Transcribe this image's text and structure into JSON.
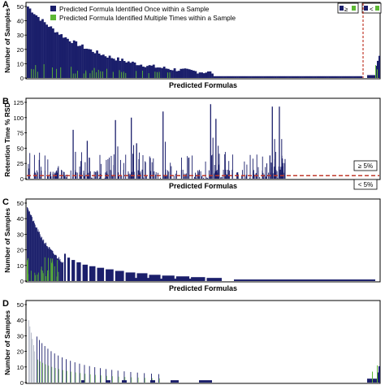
{
  "colors": {
    "navy": "#1b1f6b",
    "green": "#5db834",
    "red_dashed": "#c0392b",
    "axis": "#000000"
  },
  "chart_data": [
    {
      "panel": "A",
      "type": "bar",
      "stacked": true,
      "xlabel": "Predicted Formulas",
      "ylabel": "Number of Samples",
      "ylim": [
        0,
        50
      ],
      "yticks": [
        "0",
        "10",
        "20",
        "30",
        "40",
        "50"
      ],
      "divider_line": "vertical red dashed near right end",
      "legend_position": "top",
      "legend": [
        {
          "label": "Predicted Formula Identified Once within a Sample",
          "color": "navy"
        },
        {
          "label": "Predicted Formula Identified Multiple Times within a Sample",
          "color": "green"
        }
      ],
      "side_legend": [
        {
          "label": "≥",
          "color": "navy"
        },
        {
          "label": "<",
          "color": "navy"
        }
      ],
      "series": [
        {
          "name": "Predicted Formula Identified Once within a Sample",
          "profile": "decreasing",
          "max": 50,
          "tail_max": 15
        },
        {
          "name": "Predicted Formula Identified Multiple Times within a Sample",
          "profile": "sparse_spikes",
          "max": 12,
          "tail_max": 8
        }
      ]
    },
    {
      "panel": "B",
      "type": "bar",
      "xlabel": "Predicted  Formulas",
      "ylabel": "Retention Time % RSD",
      "ylim": [
        0,
        125
      ],
      "yticks": [
        "0",
        "25",
        "50",
        "75",
        "100",
        "125"
      ],
      "threshold_line": {
        "value": 5,
        "style": "red dashed"
      },
      "annotations": [
        "≥ 5%",
        "< 5%"
      ],
      "peaks": [
        {
          "x_frac": 0.13,
          "value": 80
        },
        {
          "x_frac": 0.17,
          "value": 62
        },
        {
          "x_frac": 0.25,
          "value": 96
        },
        {
          "x_frac": 0.295,
          "value": 100
        },
        {
          "x_frac": 0.31,
          "value": 58
        },
        {
          "x_frac": 0.385,
          "value": 110
        },
        {
          "x_frac": 0.52,
          "value": 122
        },
        {
          "x_frac": 0.535,
          "value": 98
        },
        {
          "x_frac": 0.695,
          "value": 118
        },
        {
          "x_frac": 0.715,
          "value": 118
        }
      ]
    },
    {
      "panel": "C",
      "type": "bar",
      "stacked": true,
      "xlabel": "Predicted Formulas",
      "ylabel": "Number of Samples",
      "ylim": [
        0,
        50
      ],
      "yticks": [
        "0",
        "10",
        "20",
        "30",
        "40",
        "50"
      ],
      "series": [
        {
          "name": "Predicted Formula Identified Once within a Sample",
          "profile": "decreasing_step",
          "max": 50
        },
        {
          "name": "Predicted Formula Identified Multiple Times within a Sample",
          "profile": "sparse_spikes",
          "max": 15
        }
      ]
    },
    {
      "panel": "D",
      "type": "bar",
      "stacked": true,
      "xlabel": "",
      "ylabel": "Number of Samples",
      "ylim": [
        0,
        50
      ],
      "yticks": [
        "0",
        "10",
        "20",
        "30",
        "40",
        "50"
      ],
      "series": [
        {
          "name": "Predicted Formula Identified Once within a Sample",
          "profile": "sparse_decreasing",
          "max": 40,
          "tail_max": 15
        },
        {
          "name": "Predicted Formula Identified Multiple Times within a Sample",
          "profile": "sparse_spikes",
          "max": 5,
          "tail_max": 10
        }
      ]
    }
  ],
  "labels": {
    "panel_a": "A",
    "panel_b": "B",
    "panel_c": "C",
    "panel_d": "D"
  }
}
